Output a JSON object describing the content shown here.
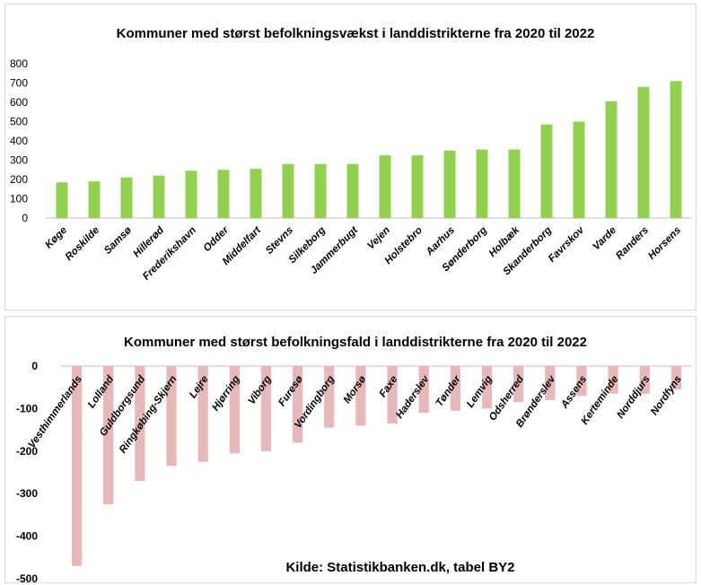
{
  "chart_data": [
    {
      "type": "bar",
      "title": "Kommuner med størst befolkningsvækst i landdistrikterne fra 2020 til 2022",
      "categories": [
        "Køge",
        "Roskilde",
        "Samsø",
        "Hillerød",
        "Frederikshavn",
        "Odder",
        "Middelfart",
        "Stevns",
        "Silkeborg",
        "Jammerbugt",
        "Vejen",
        "Holstebro",
        "Aarhus",
        "Sønderborg",
        "Holbæk",
        "Skanderborg",
        "Favrskov",
        "Varde",
        "Randers",
        "Horsens"
      ],
      "values": [
        185,
        190,
        210,
        220,
        245,
        250,
        255,
        280,
        280,
        280,
        325,
        325,
        350,
        355,
        355,
        485,
        500,
        605,
        680,
        710
      ],
      "ylim": [
        0,
        800
      ],
      "yticks": [
        0,
        100,
        200,
        300,
        400,
        500,
        600,
        700,
        800
      ],
      "xlabel": "",
      "ylabel": "",
      "bar_color": "#92d050",
      "grid": false
    },
    {
      "type": "bar",
      "title": "Kommuner med størst befolkningsfald i landdistrikterne fra 2020 til 2022",
      "categories": [
        "Vesthimmerlands",
        "Lolland",
        "Guldborgsund",
        "Ringkøbing-Skjern",
        "Lejre",
        "Hjørring",
        "Viborg",
        "Furesø",
        "Vordingborg",
        "Morsø",
        "Faxe",
        "Haderslev",
        "Tønder",
        "Lemvig",
        "Odsherred",
        "Brønderslev",
        "Assens",
        "Kerteminde",
        "Norddjurs",
        "Nordfyns"
      ],
      "values": [
        -470,
        -325,
        -270,
        -235,
        -225,
        -205,
        -200,
        -180,
        -145,
        -140,
        -135,
        -110,
        -105,
        -100,
        -85,
        -80,
        -70,
        -65,
        -65,
        -55
      ],
      "ylim": [
        -500,
        0
      ],
      "yticks": [
        0,
        -100,
        -200,
        -300,
        -400,
        -500
      ],
      "xlabel": "",
      "ylabel": "",
      "bar_color": "#e6b8b7",
      "grid": false,
      "source": "Kilde: Statistikbanken.dk, tabel BY2"
    }
  ]
}
